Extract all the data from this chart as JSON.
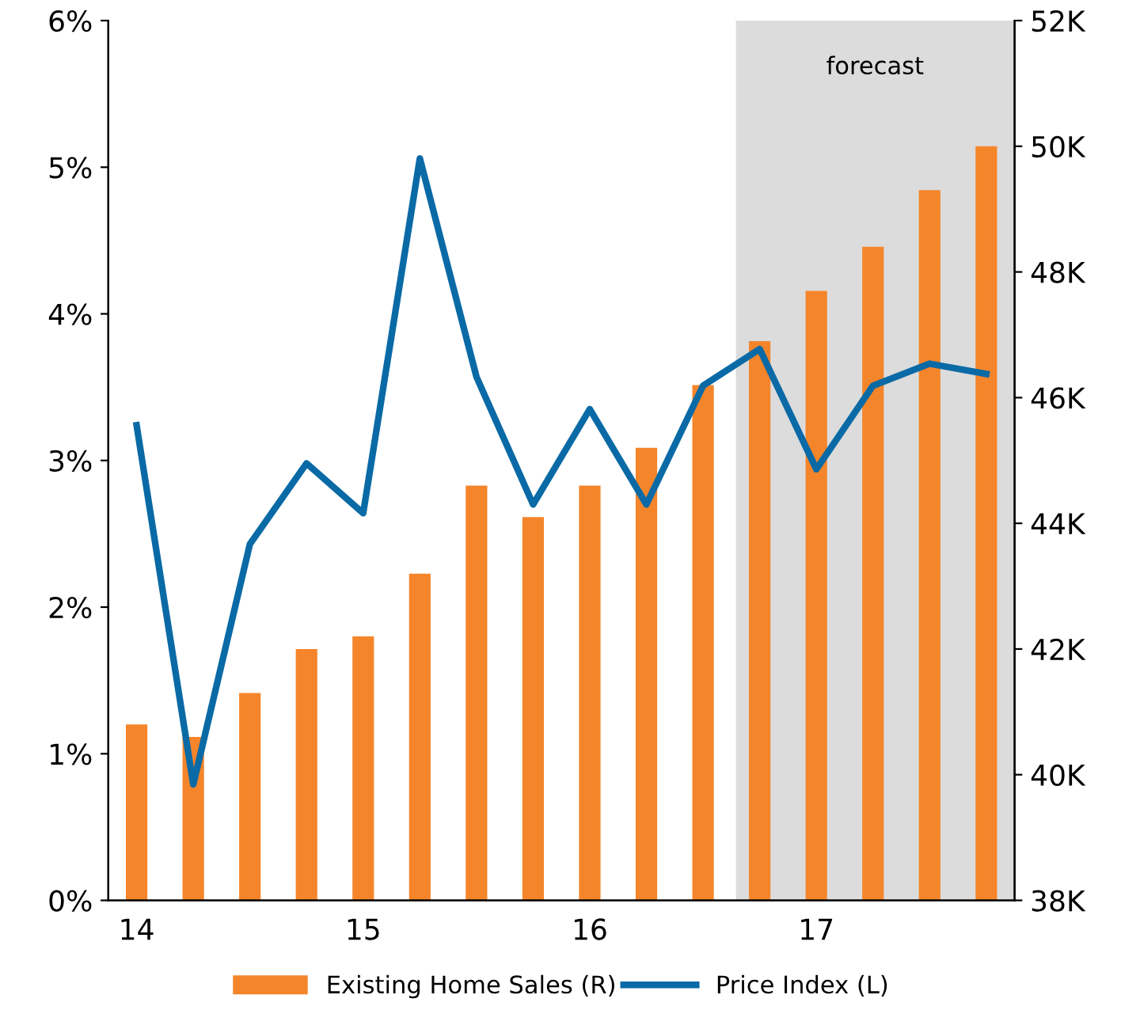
{
  "chart_data": {
    "type": "bar",
    "categories": [
      "14",
      null,
      null,
      null,
      "15",
      null,
      null,
      null,
      "16",
      null,
      null,
      null,
      "17",
      null,
      null,
      null
    ],
    "series": [
      {
        "name": "Existing Home Sales (R)",
        "axis": "y2",
        "color": "#f5852a",
        "values": [
          40.8,
          40.6,
          41.3,
          42.0,
          42.2,
          43.2,
          44.6,
          44.1,
          44.6,
          45.2,
          46.2,
          46.9,
          47.7,
          48.4,
          49.3,
          50.0
        ]
      },
      {
        "name": "Price Index (L)",
        "type": "line",
        "color": "#0a6aa6",
        "values": [
          3.24,
          0.79,
          2.43,
          2.98,
          2.64,
          5.06,
          3.57,
          2.7,
          3.35,
          2.7,
          3.51,
          3.76,
          2.94,
          3.51,
          3.66,
          3.59
        ]
      }
    ],
    "ylim": [
      0,
      6
    ],
    "yticks": [
      {
        "value": 0,
        "label": "0%"
      },
      {
        "value": 1,
        "label": "1%"
      },
      {
        "value": 2,
        "label": "2%"
      },
      {
        "value": 3,
        "label": "3%"
      },
      {
        "value": 4,
        "label": "4%"
      },
      {
        "value": 5,
        "label": "5%"
      },
      {
        "value": 6,
        "label": "6%"
      }
    ],
    "y2lim": [
      38,
      52
    ],
    "y2ticks": [
      {
        "value": 38,
        "label": "38K"
      },
      {
        "value": 40,
        "label": "40K"
      },
      {
        "value": 42,
        "label": "42K"
      },
      {
        "value": 44,
        "label": "44K"
      },
      {
        "value": 46,
        "label": "46K"
      },
      {
        "value": 48,
        "label": "48K"
      },
      {
        "value": 50,
        "label": "50K"
      },
      {
        "value": 52,
        "label": "52K"
      }
    ],
    "annotations": [
      "forecast"
    ],
    "legend": "bottom",
    "grid": false,
    "marker": "none"
  }
}
